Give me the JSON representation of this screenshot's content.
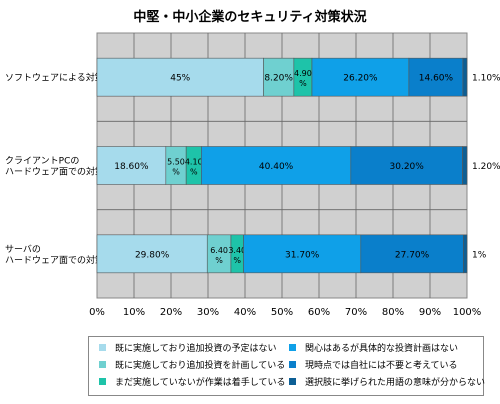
{
  "chart_data": {
    "type": "bar",
    "orientation": "horizontal",
    "stacked": "percent",
    "title": "中堅・中小企業のセキュリティ対策状況",
    "categories": [
      "ソフトウェアによる対策",
      "クライアントPCの\nハードウェア面での対策",
      "サーバの\nハードウェア面での対策"
    ],
    "xlim": [
      0,
      100
    ],
    "x_ticks": [
      "0%",
      "10%",
      "20%",
      "30%",
      "40%",
      "50%",
      "60%",
      "70%",
      "80%",
      "90%",
      "100%"
    ],
    "grid": true,
    "legend_position": "bottom",
    "series": [
      {
        "name": "既に実施しており追加投資の予定はない",
        "color": "#a6dbec",
        "values": [
          45,
          18.6,
          29.8
        ],
        "labels": [
          "45%",
          "18.60%",
          "29.80%"
        ]
      },
      {
        "name": "既に実施しており追加投資を計画している",
        "color": "#6fd0d0",
        "values": [
          8.2,
          5.5,
          6.4
        ],
        "labels": [
          "8.20%",
          "5.50%",
          "6.40%"
        ]
      },
      {
        "name": "まだ実施していないが作業は着手している",
        "color": "#1ec3a9",
        "values": [
          4.9,
          4.1,
          3.4
        ],
        "labels": [
          "4.90%",
          "4.10%",
          "3.40%"
        ]
      },
      {
        "name": "関心はあるが具体的な投資計画はない",
        "color": "#0fa0e8",
        "values": [
          26.2,
          40.4,
          31.7
        ],
        "labels": [
          "26.20%",
          "40.40%",
          "31.70%"
        ]
      },
      {
        "name": "現時点では自社には不要と考えている",
        "color": "#0a7fcb",
        "values": [
          14.6,
          30.2,
          27.7
        ],
        "labels": [
          "14.60%",
          "30.20%",
          "27.70%"
        ]
      },
      {
        "name": "選択肢に挙げられた用語の意味が分からない",
        "color": "#0d5f95",
        "values": [
          1.1,
          1.2,
          1
        ],
        "labels": [
          "1.10%",
          "1.20%",
          "1%"
        ]
      }
    ]
  }
}
